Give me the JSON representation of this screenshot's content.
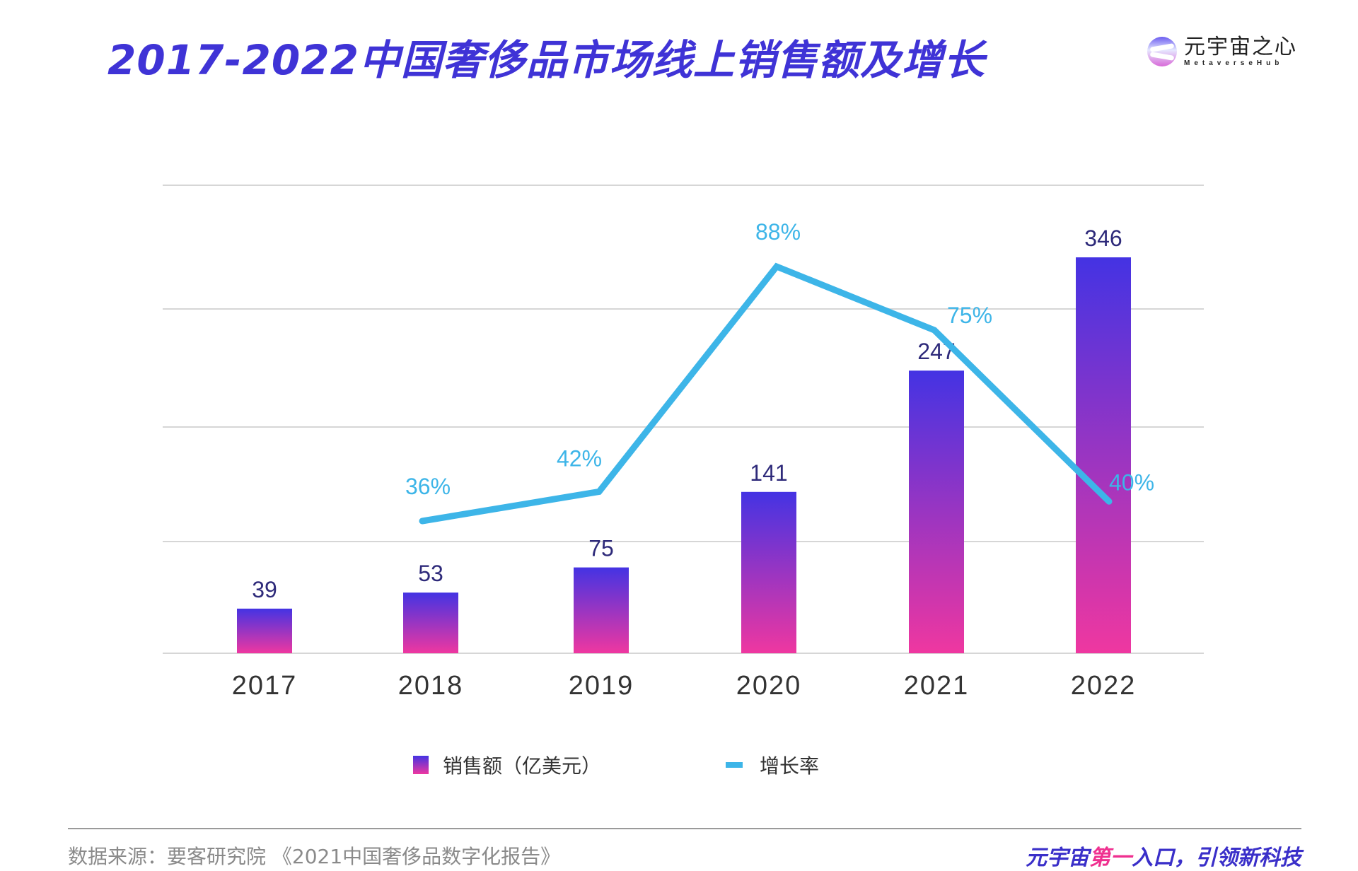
{
  "header": {
    "title": "2017-2022中国奢侈品市场线上销售额及增长",
    "logo_cn": "元宇宙之心",
    "logo_en": "MetaverseHub"
  },
  "colors": {
    "title": "#3f33d6",
    "bar_top": "#4433e3",
    "bar_bottom": "#ef37a0",
    "line": "#3db5e8",
    "bar_label": "#2e2a7a",
    "line_label": "#3db5e8",
    "gridline": "#d6d6d6",
    "axis_label": "#333333"
  },
  "chart_data": {
    "type": "bar",
    "title": "2017-2022中国奢侈品市场线上销售额及增长",
    "categories": [
      "2017",
      "2018",
      "2019",
      "2020",
      "2021",
      "2022"
    ],
    "series": [
      {
        "name": "销售额（亿美元）",
        "type": "bar",
        "values": [
          39,
          53,
          75,
          141,
          247,
          346
        ],
        "labels": [
          "39",
          "53",
          "75",
          "141",
          "247",
          "346"
        ]
      },
      {
        "name": "增长率",
        "type": "line",
        "values": [
          null,
          36,
          42,
          88,
          75,
          40
        ],
        "labels": [
          "",
          "36%",
          "42%",
          "88%",
          "75%",
          "40%"
        ]
      }
    ],
    "xlabel": "",
    "ylabel": "",
    "ylim": [
      0,
      346
    ],
    "y2lim": [
      0,
      100
    ],
    "grid": true,
    "legend": "bottom-center"
  },
  "legend": {
    "bar_label": "销售额（亿美元）",
    "line_label": "增长率"
  },
  "footer": {
    "source": "数据来源：要客研究院   《2021中国奢侈品数字化报告》",
    "slogan_part1": "元宇宙",
    "slogan_highlight": "第一",
    "slogan_part2": "入口，引领新科技"
  }
}
